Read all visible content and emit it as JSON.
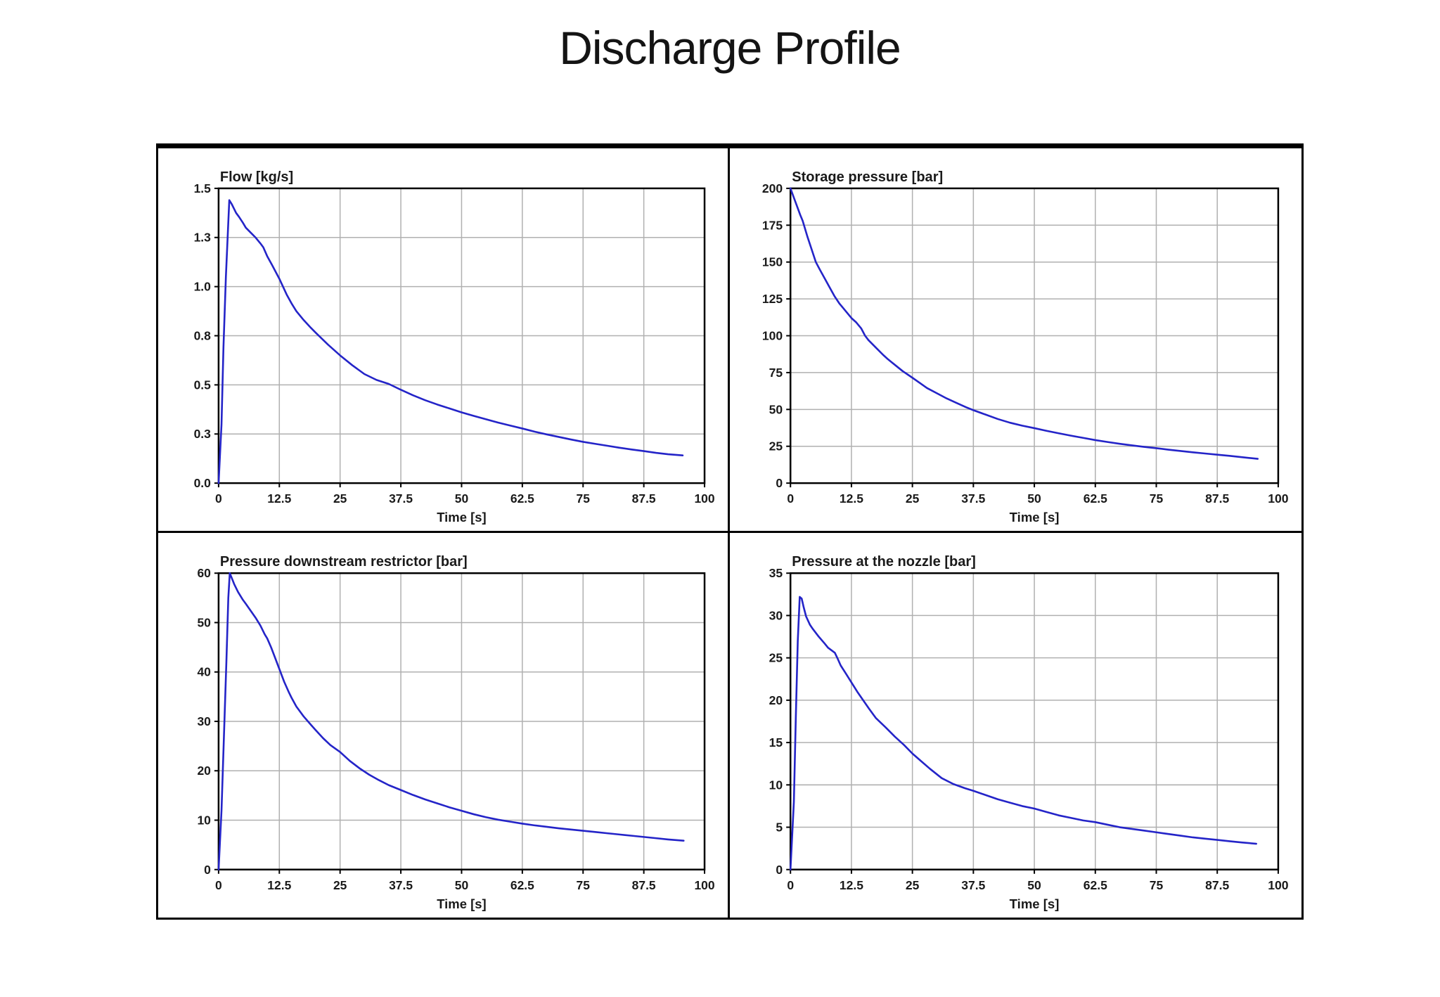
{
  "page": {
    "title": "Discharge Profile"
  },
  "style": {
    "curve_color": "#2424c8",
    "grid_color": "#b0b0b0",
    "axis_color": "#000000",
    "text_color": "#1a1a1a",
    "background": "#ffffff"
  },
  "chart_data": [
    {
      "id": "flow",
      "type": "line",
      "title": "Flow [kg/s]",
      "xlabel": "Time [s]",
      "xlim": [
        0,
        100
      ],
      "ylim": [
        0,
        1.5
      ],
      "grid": true,
      "legend": "none",
      "x_ticks": [
        {
          "label": "0",
          "v": 0
        },
        {
          "label": "12.5",
          "v": 12.5
        },
        {
          "label": "25",
          "v": 25
        },
        {
          "label": "37.5",
          "v": 37.5
        },
        {
          "label": "50",
          "v": 50
        },
        {
          "label": "62.5",
          "v": 62.5
        },
        {
          "label": "75",
          "v": 75
        },
        {
          "label": "87.5",
          "v": 87.5
        },
        {
          "label": "100",
          "v": 100
        }
      ],
      "y_ticks": [
        {
          "label": "0.0",
          "v": 0
        },
        {
          "label": "0.3",
          "v": 0.25
        },
        {
          "label": "0.5",
          "v": 0.5
        },
        {
          "label": "0.8",
          "v": 0.75
        },
        {
          "label": "1.0",
          "v": 1.0
        },
        {
          "label": "1.3",
          "v": 1.25
        },
        {
          "label": "1.5",
          "v": 1.5
        }
      ],
      "points": [
        [
          0,
          0
        ],
        [
          0.6,
          0.3
        ],
        [
          1.0,
          0.69
        ],
        [
          1.5,
          1.05
        ],
        [
          2.2,
          1.44
        ],
        [
          2.7,
          1.42
        ],
        [
          3.1,
          1.4
        ],
        [
          3.6,
          1.375
        ],
        [
          4.2,
          1.355
        ],
        [
          5.0,
          1.325
        ],
        [
          5.6,
          1.3
        ],
        [
          6.6,
          1.275
        ],
        [
          7.6,
          1.25
        ],
        [
          8.6,
          1.22
        ],
        [
          9.2,
          1.2
        ],
        [
          10,
          1.155
        ],
        [
          11,
          1.11
        ],
        [
          12.5,
          1.04
        ],
        [
          14,
          0.96
        ],
        [
          15,
          0.915
        ],
        [
          16,
          0.875
        ],
        [
          17.5,
          0.83
        ],
        [
          19,
          0.79
        ],
        [
          20,
          0.765
        ],
        [
          22.5,
          0.705
        ],
        [
          25,
          0.65
        ],
        [
          27.5,
          0.6
        ],
        [
          30,
          0.555
        ],
        [
          32.5,
          0.525
        ],
        [
          35,
          0.505
        ],
        [
          37.5,
          0.475
        ],
        [
          40,
          0.447
        ],
        [
          42.5,
          0.422
        ],
        [
          45,
          0.4
        ],
        [
          47.5,
          0.38
        ],
        [
          50,
          0.36
        ],
        [
          52.5,
          0.342
        ],
        [
          55,
          0.325
        ],
        [
          57.5,
          0.308
        ],
        [
          60,
          0.293
        ],
        [
          62.5,
          0.278
        ],
        [
          65,
          0.262
        ],
        [
          67.5,
          0.248
        ],
        [
          70,
          0.235
        ],
        [
          72.5,
          0.222
        ],
        [
          75,
          0.21
        ],
        [
          77.5,
          0.2
        ],
        [
          80,
          0.19
        ],
        [
          82.5,
          0.18
        ],
        [
          85,
          0.171
        ],
        [
          87.5,
          0.163
        ],
        [
          90,
          0.154
        ],
        [
          92.5,
          0.147
        ],
        [
          95.5,
          0.141
        ]
      ]
    },
    {
      "id": "storage",
      "type": "line",
      "title": "Storage pressure [bar]",
      "xlabel": "Time [s]",
      "xlim": [
        0,
        100
      ],
      "ylim": [
        0,
        200
      ],
      "grid": true,
      "legend": "none",
      "x_ticks": [
        {
          "label": "0",
          "v": 0
        },
        {
          "label": "12.5",
          "v": 12.5
        },
        {
          "label": "25",
          "v": 25
        },
        {
          "label": "37.5",
          "v": 37.5
        },
        {
          "label": "50",
          "v": 50
        },
        {
          "label": "62.5",
          "v": 62.5
        },
        {
          "label": "75",
          "v": 75
        },
        {
          "label": "87.5",
          "v": 87.5
        },
        {
          "label": "100",
          "v": 100
        }
      ],
      "y_ticks": [
        {
          "label": "0",
          "v": 0
        },
        {
          "label": "25",
          "v": 25
        },
        {
          "label": "50",
          "v": 50
        },
        {
          "label": "75",
          "v": 75
        },
        {
          "label": "100",
          "v": 100
        },
        {
          "label": "125",
          "v": 125
        },
        {
          "label": "150",
          "v": 150
        },
        {
          "label": "175",
          "v": 175
        },
        {
          "label": "200",
          "v": 200
        }
      ],
      "points": [
        [
          0,
          200
        ],
        [
          1,
          191
        ],
        [
          2,
          182
        ],
        [
          2.5,
          178
        ],
        [
          3.5,
          167
        ],
        [
          4.5,
          157
        ],
        [
          5.2,
          150
        ],
        [
          6,
          145
        ],
        [
          7,
          139
        ],
        [
          8,
          133
        ],
        [
          9,
          127
        ],
        [
          10,
          122
        ],
        [
          10.5,
          120
        ],
        [
          11.5,
          116
        ],
        [
          12.5,
          112
        ],
        [
          13.5,
          109
        ],
        [
          14.5,
          105
        ],
        [
          15.3,
          100
        ],
        [
          16,
          97
        ],
        [
          17.5,
          92
        ],
        [
          19,
          87
        ],
        [
          20,
          84
        ],
        [
          21.5,
          80
        ],
        [
          23,
          76
        ],
        [
          25,
          71.5
        ],
        [
          26.5,
          68
        ],
        [
          28,
          64.5
        ],
        [
          30,
          61
        ],
        [
          32,
          57.5
        ],
        [
          34,
          54.5
        ],
        [
          36,
          51.5
        ],
        [
          37.5,
          49.5
        ],
        [
          40,
          46.5
        ],
        [
          42.5,
          43.5
        ],
        [
          45,
          41
        ],
        [
          47.5,
          39
        ],
        [
          50,
          37.3
        ],
        [
          52.5,
          35.5
        ],
        [
          55,
          33.8
        ],
        [
          57.5,
          32.2
        ],
        [
          60,
          30.7
        ],
        [
          62.5,
          29.2
        ],
        [
          65,
          27.9
        ],
        [
          67.5,
          26.7
        ],
        [
          70,
          25.6
        ],
        [
          72.5,
          24.6
        ],
        [
          75,
          23.7
        ],
        [
          77.5,
          22.7
        ],
        [
          80,
          21.8
        ],
        [
          82.5,
          20.9
        ],
        [
          85,
          20.1
        ],
        [
          87.5,
          19.3
        ],
        [
          90,
          18.5
        ],
        [
          92,
          17.8
        ],
        [
          94,
          17.1
        ],
        [
          95.8,
          16.5
        ]
      ]
    },
    {
      "id": "downstream",
      "type": "line",
      "title": "Pressure downstream restrictor [bar]",
      "xlabel": "Time [s]",
      "xlim": [
        0,
        100
      ],
      "ylim": [
        0,
        60
      ],
      "grid": true,
      "legend": "none",
      "x_ticks": [
        {
          "label": "0",
          "v": 0
        },
        {
          "label": "12.5",
          "v": 12.5
        },
        {
          "label": "25",
          "v": 25
        },
        {
          "label": "37.5",
          "v": 37.5
        },
        {
          "label": "50",
          "v": 50
        },
        {
          "label": "62.5",
          "v": 62.5
        },
        {
          "label": "75",
          "v": 75
        },
        {
          "label": "87.5",
          "v": 87.5
        },
        {
          "label": "100",
          "v": 100
        }
      ],
      "y_ticks": [
        {
          "label": "0",
          "v": 0
        },
        {
          "label": "10",
          "v": 10
        },
        {
          "label": "20",
          "v": 20
        },
        {
          "label": "30",
          "v": 30
        },
        {
          "label": "40",
          "v": 40
        },
        {
          "label": "50",
          "v": 50
        },
        {
          "label": "60",
          "v": 60
        }
      ],
      "points": [
        [
          0,
          0
        ],
        [
          0.6,
          12
        ],
        [
          1.1,
          27
        ],
        [
          1.6,
          42
        ],
        [
          2.0,
          55
        ],
        [
          2.3,
          60
        ],
        [
          2.8,
          58.8
        ],
        [
          3.2,
          57.8
        ],
        [
          4,
          56.2
        ],
        [
          5,
          54.6
        ],
        [
          5.6,
          53.8
        ],
        [
          6.6,
          52.4
        ],
        [
          7.6,
          51
        ],
        [
          8.6,
          49.4
        ],
        [
          9.5,
          47.6
        ],
        [
          10,
          46.8
        ],
        [
          10.8,
          45
        ],
        [
          11.5,
          43.2
        ],
        [
          12.5,
          40.6
        ],
        [
          13.5,
          38
        ],
        [
          14.5,
          35.8
        ],
        [
          15,
          34.8
        ],
        [
          16,
          33
        ],
        [
          17.5,
          31
        ],
        [
          19,
          29.3
        ],
        [
          20,
          28.2
        ],
        [
          21.5,
          26.6
        ],
        [
          23,
          25.2
        ],
        [
          25,
          23.8
        ],
        [
          27,
          22
        ],
        [
          29,
          20.5
        ],
        [
          31,
          19.2
        ],
        [
          33,
          18.1
        ],
        [
          35,
          17.1
        ],
        [
          37.5,
          16.1
        ],
        [
          40,
          15.1
        ],
        [
          42.5,
          14.2
        ],
        [
          45,
          13.4
        ],
        [
          47.5,
          12.6
        ],
        [
          50,
          11.9
        ],
        [
          52.5,
          11.2
        ],
        [
          55,
          10.6
        ],
        [
          57.5,
          10.1
        ],
        [
          60,
          9.7
        ],
        [
          62.5,
          9.3
        ],
        [
          65,
          8.95
        ],
        [
          67.5,
          8.65
        ],
        [
          70,
          8.35
        ],
        [
          72.5,
          8.1
        ],
        [
          75,
          7.85
        ],
        [
          77.5,
          7.6
        ],
        [
          80,
          7.35
        ],
        [
          82.5,
          7.1
        ],
        [
          85,
          6.85
        ],
        [
          87.5,
          6.6
        ],
        [
          90,
          6.35
        ],
        [
          92.5,
          6.1
        ],
        [
          95.7,
          5.85
        ]
      ]
    },
    {
      "id": "nozzle",
      "type": "line",
      "title": "Pressure at the nozzle [bar]",
      "xlabel": "Time [s]",
      "xlim": [
        0,
        100
      ],
      "ylim": [
        0,
        35
      ],
      "grid": true,
      "legend": "none",
      "x_ticks": [
        {
          "label": "0",
          "v": 0
        },
        {
          "label": "12.5",
          "v": 12.5
        },
        {
          "label": "25",
          "v": 25
        },
        {
          "label": "37.5",
          "v": 37.5
        },
        {
          "label": "50",
          "v": 50
        },
        {
          "label": "62.5",
          "v": 62.5
        },
        {
          "label": "75",
          "v": 75
        },
        {
          "label": "87.5",
          "v": 87.5
        },
        {
          "label": "100",
          "v": 100
        }
      ],
      "y_ticks": [
        {
          "label": "0",
          "v": 0
        },
        {
          "label": "5",
          "v": 5
        },
        {
          "label": "10",
          "v": 10
        },
        {
          "label": "15",
          "v": 15
        },
        {
          "label": "20",
          "v": 20
        },
        {
          "label": "25",
          "v": 25
        },
        {
          "label": "30",
          "v": 30
        },
        {
          "label": "35",
          "v": 35
        }
      ],
      "points": [
        [
          0,
          0
        ],
        [
          0.7,
          8
        ],
        [
          1.1,
          18
        ],
        [
          1.5,
          27
        ],
        [
          1.9,
          32.2
        ],
        [
          2.3,
          32.0
        ],
        [
          2.7,
          31.0
        ],
        [
          3.2,
          29.9
        ],
        [
          4,
          28.9
        ],
        [
          4.6,
          28.4
        ],
        [
          5.8,
          27.5
        ],
        [
          7,
          26.7
        ],
        [
          7.7,
          26.2
        ],
        [
          8.4,
          25.9
        ],
        [
          9.1,
          25.6
        ],
        [
          9.6,
          25.0
        ],
        [
          10.3,
          24.1
        ],
        [
          11.3,
          23.2
        ],
        [
          12.5,
          22.1
        ],
        [
          13.7,
          21.0
        ],
        [
          14.9,
          20.0
        ],
        [
          16.1,
          19.0
        ],
        [
          17.5,
          17.9
        ],
        [
          19.5,
          16.8
        ],
        [
          21.4,
          15.7
        ],
        [
          23.3,
          14.7
        ],
        [
          25,
          13.7
        ],
        [
          26.8,
          12.8
        ],
        [
          28.6,
          11.9
        ],
        [
          31,
          10.8
        ],
        [
          33.4,
          10.1
        ],
        [
          35.8,
          9.6
        ],
        [
          37.5,
          9.3
        ],
        [
          40,
          8.8
        ],
        [
          42.5,
          8.3
        ],
        [
          45,
          7.9
        ],
        [
          47.5,
          7.5
        ],
        [
          50,
          7.2
        ],
        [
          52.5,
          6.8
        ],
        [
          55,
          6.4
        ],
        [
          57.5,
          6.1
        ],
        [
          60,
          5.8
        ],
        [
          62.5,
          5.6
        ],
        [
          65,
          5.3
        ],
        [
          67.5,
          5.0
        ],
        [
          70,
          4.8
        ],
        [
          72.5,
          4.6
        ],
        [
          75,
          4.4
        ],
        [
          77.5,
          4.2
        ],
        [
          80,
          4.0
        ],
        [
          82.5,
          3.8
        ],
        [
          85,
          3.65
        ],
        [
          87.5,
          3.5
        ],
        [
          90,
          3.35
        ],
        [
          92.5,
          3.2
        ],
        [
          95.5,
          3.05
        ]
      ]
    }
  ]
}
